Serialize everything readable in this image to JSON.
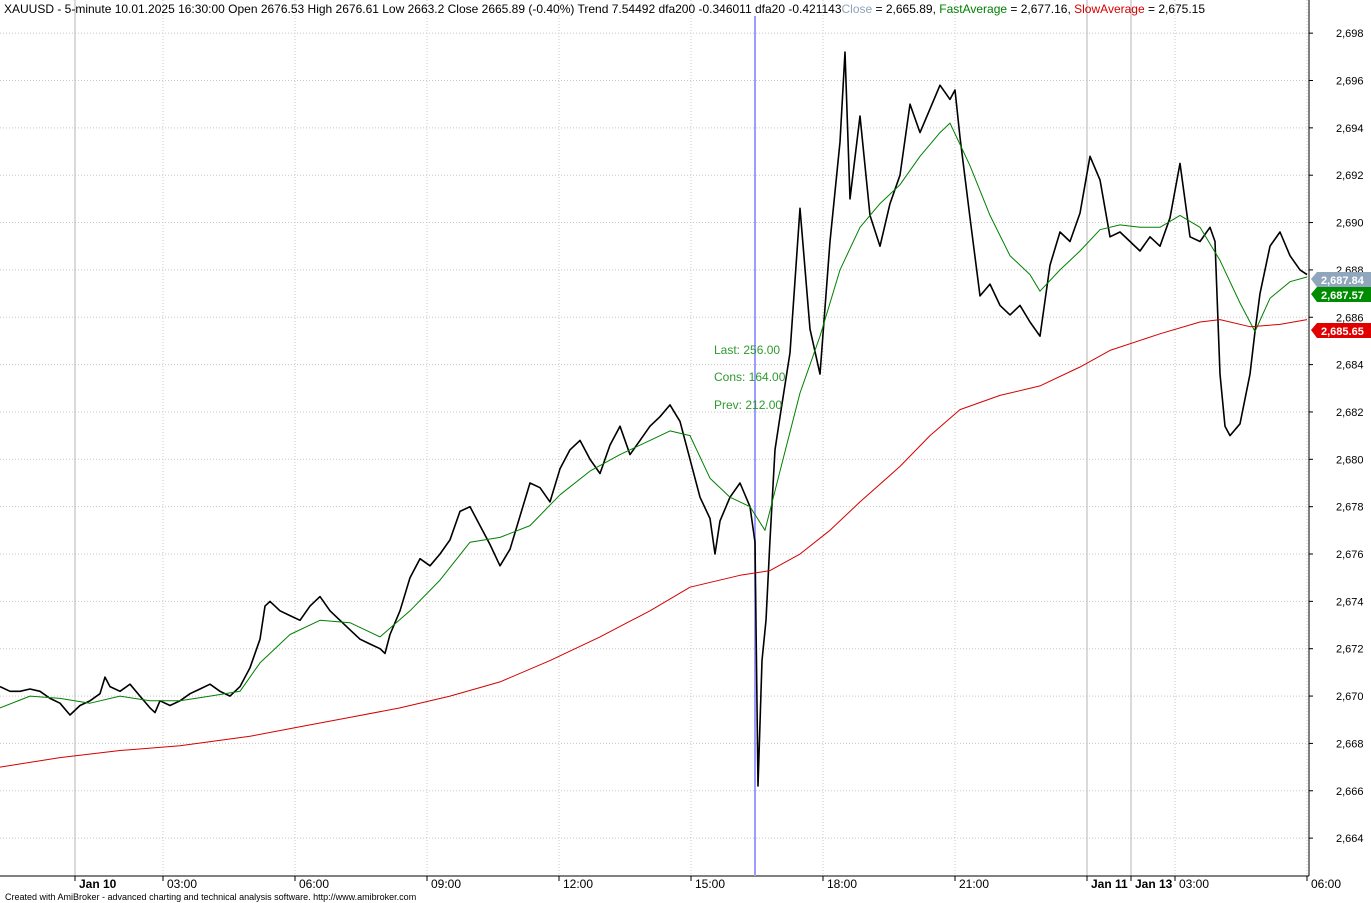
{
  "header": {
    "symbol_info": "XAUUSD - 5-minute 10.01.2025 16:30:00 Open 2676.53 High 2676.61 Low 2663.2 Close 2665.89 (-0.40%) Trend 7.54492 dfa200 -0.346011 dfa20 -0.421143",
    "close_label": "Close",
    "close_value": " = 2,665.89, ",
    "fast_label": "FastAverage",
    "fast_value": " = 2,677.16, ",
    "slow_label": "SlowAverage",
    "slow_value": " = 2,675.15",
    "colors": {
      "close": "#8fa3b8",
      "fast": "#008000",
      "slow": "#d40000"
    }
  },
  "annotations": {
    "last": "Last: 256.00",
    "cons": "Cons: 164.00",
    "prev": "Prev: 212.00"
  },
  "badges": {
    "close": {
      "text": "2,687.84",
      "color": "#8fa6bd"
    },
    "fast": {
      "text": "2,687.57",
      "color": "#008c00"
    },
    "slow": {
      "text": "2,685.65",
      "color": "#e00000"
    }
  },
  "footer": "Created with AmiBroker - advanced charting and technical analysis software. http://www.amibroker.com",
  "chart_data": {
    "type": "line",
    "series": [
      {
        "name": "Close",
        "kind": "price",
        "color": "#000000",
        "points": [
          [
            0,
            2670.4
          ],
          [
            10,
            2670.2
          ],
          [
            20,
            2670.2
          ],
          [
            30,
            2670.3
          ],
          [
            40,
            2670.2
          ],
          [
            50,
            2669.9
          ],
          [
            60,
            2669.7
          ],
          [
            70,
            2669.2
          ],
          [
            80,
            2669.6
          ],
          [
            90,
            2669.8
          ],
          [
            100,
            2670.1
          ],
          [
            105,
            2670.8
          ],
          [
            110,
            2670.4
          ],
          [
            120,
            2670.2
          ],
          [
            130,
            2670.5
          ],
          [
            140,
            2670.0
          ],
          [
            150,
            2669.5
          ],
          [
            155,
            2669.3
          ],
          [
            160,
            2669.8
          ],
          [
            170,
            2669.6
          ],
          [
            180,
            2669.8
          ],
          [
            190,
            2670.1
          ],
          [
            200,
            2670.3
          ],
          [
            210,
            2670.5
          ],
          [
            220,
            2670.2
          ],
          [
            230,
            2670.0
          ],
          [
            240,
            2670.4
          ],
          [
            250,
            2671.2
          ],
          [
            260,
            2672.4
          ],
          [
            265,
            2673.8
          ],
          [
            270,
            2674.0
          ],
          [
            280,
            2673.6
          ],
          [
            290,
            2673.4
          ],
          [
            300,
            2673.2
          ],
          [
            310,
            2673.8
          ],
          [
            320,
            2674.2
          ],
          [
            330,
            2673.6
          ],
          [
            340,
            2673.2
          ],
          [
            350,
            2672.8
          ],
          [
            360,
            2672.4
          ],
          [
            370,
            2672.2
          ],
          [
            380,
            2672.0
          ],
          [
            385,
            2671.8
          ],
          [
            390,
            2672.6
          ],
          [
            400,
            2673.6
          ],
          [
            410,
            2675.0
          ],
          [
            420,
            2675.8
          ],
          [
            430,
            2675.5
          ],
          [
            440,
            2676.0
          ],
          [
            450,
            2676.6
          ],
          [
            460,
            2677.8
          ],
          [
            470,
            2678.0
          ],
          [
            480,
            2677.2
          ],
          [
            490,
            2676.4
          ],
          [
            500,
            2675.5
          ],
          [
            510,
            2676.2
          ],
          [
            520,
            2677.6
          ],
          [
            530,
            2679.0
          ],
          [
            540,
            2678.8
          ],
          [
            550,
            2678.2
          ],
          [
            560,
            2679.6
          ],
          [
            570,
            2680.4
          ],
          [
            580,
            2680.8
          ],
          [
            590,
            2680.0
          ],
          [
            600,
            2679.4
          ],
          [
            610,
            2680.6
          ],
          [
            620,
            2681.4
          ],
          [
            630,
            2680.2
          ],
          [
            640,
            2680.8
          ],
          [
            650,
            2681.4
          ],
          [
            660,
            2681.8
          ],
          [
            670,
            2682.3
          ],
          [
            680,
            2681.6
          ],
          [
            690,
            2680.0
          ],
          [
            700,
            2678.4
          ],
          [
            710,
            2677.5
          ],
          [
            715,
            2676.0
          ],
          [
            720,
            2677.4
          ],
          [
            730,
            2678.4
          ],
          [
            740,
            2679.0
          ],
          [
            750,
            2678.0
          ],
          [
            755,
            2676.5
          ],
          [
            758,
            2666.2
          ],
          [
            762,
            2671.5
          ],
          [
            766,
            2673.2
          ],
          [
            770,
            2676.6
          ],
          [
            775,
            2680.4
          ],
          [
            780,
            2681.8
          ],
          [
            790,
            2684.5
          ],
          [
            800,
            2690.6
          ],
          [
            810,
            2685.5
          ],
          [
            820,
            2683.6
          ],
          [
            830,
            2689.2
          ],
          [
            840,
            2693.4
          ],
          [
            845,
            2697.2
          ],
          [
            850,
            2691.0
          ],
          [
            860,
            2694.5
          ],
          [
            870,
            2690.3
          ],
          [
            880,
            2689.0
          ],
          [
            890,
            2690.8
          ],
          [
            900,
            2692.0
          ],
          [
            910,
            2695.0
          ],
          [
            920,
            2693.8
          ],
          [
            930,
            2694.8
          ],
          [
            940,
            2695.8
          ],
          [
            950,
            2695.2
          ],
          [
            955,
            2695.6
          ],
          [
            960,
            2693.6
          ],
          [
            970,
            2690.2
          ],
          [
            980,
            2686.9
          ],
          [
            990,
            2687.4
          ],
          [
            1000,
            2686.5
          ],
          [
            1010,
            2686.1
          ],
          [
            1020,
            2686.5
          ],
          [
            1030,
            2685.8
          ],
          [
            1040,
            2685.2
          ],
          [
            1050,
            2688.2
          ],
          [
            1060,
            2689.6
          ],
          [
            1070,
            2689.2
          ],
          [
            1080,
            2690.4
          ],
          [
            1090,
            2692.8
          ],
          [
            1100,
            2691.8
          ],
          [
            1110,
            2689.4
          ],
          [
            1120,
            2689.6
          ],
          [
            1130,
            2689.2
          ],
          [
            1140,
            2688.8
          ],
          [
            1150,
            2689.4
          ],
          [
            1160,
            2689.0
          ],
          [
            1170,
            2690.2
          ],
          [
            1180,
            2692.5
          ],
          [
            1190,
            2689.4
          ],
          [
            1200,
            2689.2
          ],
          [
            1210,
            2689.8
          ],
          [
            1215,
            2689.2
          ],
          [
            1220,
            2683.6
          ],
          [
            1225,
            2681.4
          ],
          [
            1230,
            2681.0
          ],
          [
            1240,
            2681.5
          ],
          [
            1250,
            2683.6
          ],
          [
            1255,
            2685.4
          ],
          [
            1260,
            2687.0
          ],
          [
            1270,
            2689.0
          ],
          [
            1280,
            2689.6
          ],
          [
            1290,
            2688.6
          ],
          [
            1300,
            2688.0
          ],
          [
            1307,
            2687.8
          ]
        ]
      },
      {
        "name": "FastAverage",
        "kind": "line",
        "color": "#008000",
        "points": [
          [
            0,
            2669.5
          ],
          [
            30,
            2670.0
          ],
          [
            60,
            2669.9
          ],
          [
            90,
            2669.7
          ],
          [
            120,
            2670.0
          ],
          [
            150,
            2669.8
          ],
          [
            180,
            2669.8
          ],
          [
            210,
            2670.0
          ],
          [
            240,
            2670.2
          ],
          [
            260,
            2671.4
          ],
          [
            290,
            2672.6
          ],
          [
            320,
            2673.2
          ],
          [
            350,
            2673.1
          ],
          [
            380,
            2672.5
          ],
          [
            410,
            2673.6
          ],
          [
            440,
            2674.9
          ],
          [
            470,
            2676.5
          ],
          [
            500,
            2676.7
          ],
          [
            530,
            2677.2
          ],
          [
            560,
            2678.5
          ],
          [
            590,
            2679.5
          ],
          [
            620,
            2680.2
          ],
          [
            650,
            2680.8
          ],
          [
            670,
            2681.2
          ],
          [
            690,
            2681.0
          ],
          [
            710,
            2679.2
          ],
          [
            730,
            2678.4
          ],
          [
            750,
            2678.0
          ],
          [
            765,
            2677.0
          ],
          [
            780,
            2679.5
          ],
          [
            800,
            2682.8
          ],
          [
            820,
            2685.2
          ],
          [
            840,
            2688.0
          ],
          [
            860,
            2689.8
          ],
          [
            880,
            2690.8
          ],
          [
            900,
            2691.6
          ],
          [
            920,
            2692.8
          ],
          [
            940,
            2693.8
          ],
          [
            950,
            2694.2
          ],
          [
            970,
            2692.4
          ],
          [
            990,
            2690.3
          ],
          [
            1010,
            2688.6
          ],
          [
            1030,
            2687.8
          ],
          [
            1040,
            2687.1
          ],
          [
            1060,
            2688.0
          ],
          [
            1080,
            2688.8
          ],
          [
            1100,
            2689.7
          ],
          [
            1120,
            2689.9
          ],
          [
            1140,
            2689.8
          ],
          [
            1160,
            2689.8
          ],
          [
            1180,
            2690.3
          ],
          [
            1200,
            2689.8
          ],
          [
            1220,
            2688.4
          ],
          [
            1240,
            2686.6
          ],
          [
            1255,
            2685.4
          ],
          [
            1270,
            2686.8
          ],
          [
            1290,
            2687.5
          ],
          [
            1307,
            2687.7
          ]
        ]
      },
      {
        "name": "SlowAverage",
        "kind": "line",
        "color": "#d40000",
        "points": [
          [
            0,
            2667.0
          ],
          [
            60,
            2667.4
          ],
          [
            120,
            2667.7
          ],
          [
            180,
            2667.9
          ],
          [
            250,
            2668.3
          ],
          [
            300,
            2668.7
          ],
          [
            350,
            2669.1
          ],
          [
            400,
            2669.5
          ],
          [
            450,
            2670.0
          ],
          [
            500,
            2670.6
          ],
          [
            550,
            2671.5
          ],
          [
            600,
            2672.5
          ],
          [
            650,
            2673.6
          ],
          [
            690,
            2674.6
          ],
          [
            740,
            2675.1
          ],
          [
            770,
            2675.3
          ],
          [
            800,
            2676.0
          ],
          [
            830,
            2677.0
          ],
          [
            860,
            2678.2
          ],
          [
            900,
            2679.7
          ],
          [
            930,
            2681.0
          ],
          [
            960,
            2682.1
          ],
          [
            1000,
            2682.7
          ],
          [
            1040,
            2683.1
          ],
          [
            1080,
            2683.9
          ],
          [
            1110,
            2684.6
          ],
          [
            1160,
            2685.3
          ],
          [
            1200,
            2685.8
          ],
          [
            1220,
            2685.9
          ],
          [
            1250,
            2685.6
          ],
          [
            1280,
            2685.7
          ],
          [
            1307,
            2685.9
          ]
        ]
      }
    ],
    "markers": [
      {
        "type": "vertical-line",
        "x": 755,
        "color": "#9d9dff"
      }
    ],
    "ylim": [
      2662.4,
      2699.4
    ],
    "y_ticks": [
      2664,
      2666,
      2668,
      2670,
      2672,
      2674,
      2676,
      2678,
      2680,
      2682,
      2684,
      2686,
      2688,
      2690,
      2692,
      2694,
      2696,
      2698
    ],
    "y_tick_labels": [
      "2,664",
      "2,666",
      "2,668",
      "2,670",
      "2,672",
      "2,674",
      "2,676",
      "2,678",
      "2,680",
      "2,682",
      "2,684",
      "2,686",
      "2,688",
      "2,690",
      "2,692",
      "2,694",
      "2,696",
      "2,698"
    ],
    "x_ticks": [
      {
        "label": "Jan 10",
        "at": 75,
        "bold": true
      },
      {
        "label": "03:00",
        "at": 163
      },
      {
        "label": "06:00",
        "at": 295
      },
      {
        "label": "09:00",
        "at": 427
      },
      {
        "label": "12:00",
        "at": 559
      },
      {
        "label": "15:00",
        "at": 691
      },
      {
        "label": "18:00",
        "at": 823
      },
      {
        "label": "21:00",
        "at": 955
      },
      {
        "label": "Jan 11",
        "at": 1087,
        "bold": true
      },
      {
        "label": "Jan 13",
        "at": 1131,
        "bold": true
      },
      {
        "label": "03:00",
        "at": 1175
      },
      {
        "label": "06:00",
        "at": 1307
      }
    ],
    "grid": true,
    "legend": "top"
  }
}
